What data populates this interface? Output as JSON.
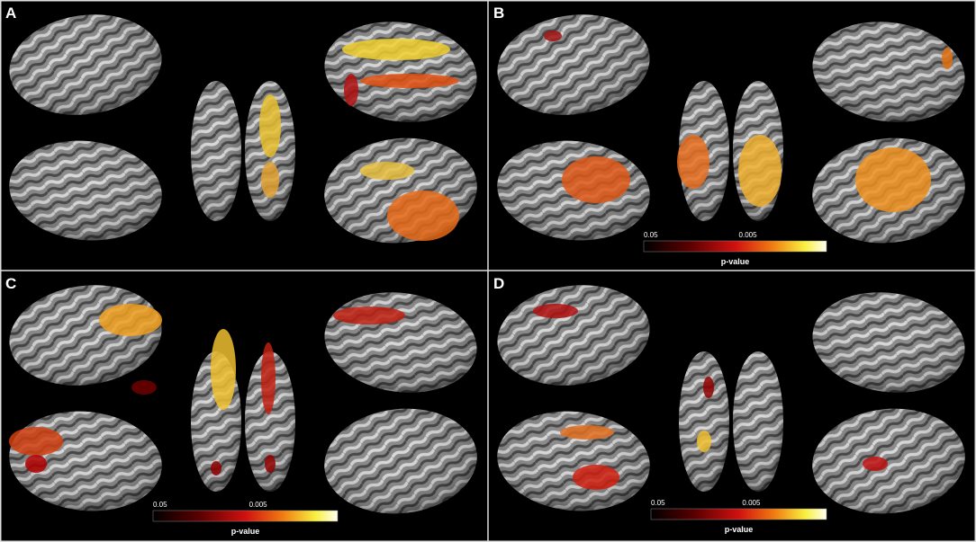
{
  "panels": [
    {
      "label": "A"
    },
    {
      "label": "B",
      "colorbar": {
        "min_label": "0.05",
        "max_label": "0.005",
        "title": "p-value"
      }
    },
    {
      "label": "C",
      "colorbar": {
        "min_label": "0.05",
        "max_label": "0.005",
        "title": "p-value"
      }
    },
    {
      "label": "D",
      "colorbar": {
        "min_label": "0.05",
        "max_label": "0.005",
        "title": "p-value"
      }
    }
  ]
}
